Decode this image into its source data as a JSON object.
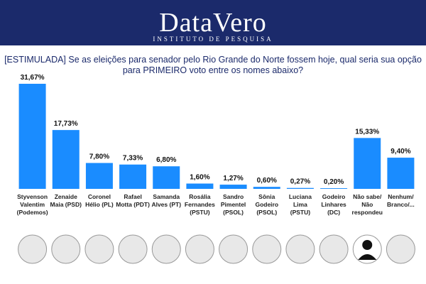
{
  "header": {
    "brand": "DataVero",
    "tagline": "INSTITUTO DE PESQUISA"
  },
  "chart_data": {
    "type": "bar",
    "title": "[ESTIMULADA] Se as eleições para senador pelo Rio Grande do Norte fossem hoje, qual seria sua opção para PRIMEIRO voto entre os nomes abaixo?",
    "categories": [
      "Styvenson Valentim (Podemos)",
      "Zenaide Maia (PSD)",
      "Coronel Hélio (PL)",
      "Rafael Motta (PDT)",
      "Samanda Alves (PT)",
      "Rosália Fernandes (PSTU)",
      "Sandro Pimentel (PSOL)",
      "Sônia Godeiro (PSOL)",
      "Luciana Lima (PSTU)",
      "Godeiro Linhares (DC)",
      "Não sabe/ Não respondeu",
      "Nenhum/ Branco/..."
    ],
    "values": [
      31.67,
      17.73,
      7.8,
      7.33,
      6.8,
      1.6,
      1.27,
      0.6,
      0.27,
      0.2,
      15.33,
      9.4
    ],
    "value_labels": [
      "31,67%",
      "17,73%",
      "7,80%",
      "7,33%",
      "6,80%",
      "1,60%",
      "1,27%",
      "0,60%",
      "0,27%",
      "0,20%",
      "15,33%",
      "9,40%"
    ],
    "color": "#1a8cff"
  }
}
